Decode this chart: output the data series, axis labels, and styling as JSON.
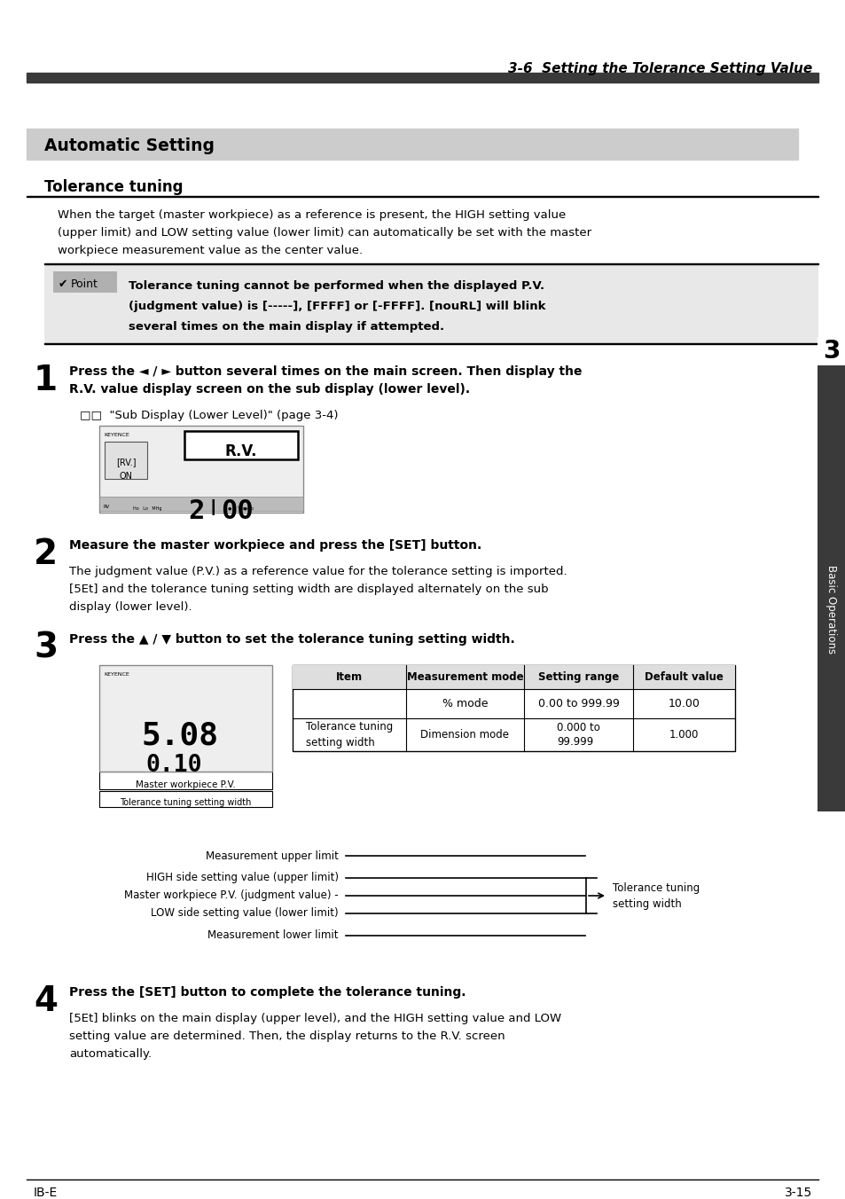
{
  "page_title": "3-6  Setting the Tolerance Setting Value",
  "section_header": "Automatic Setting",
  "subsection_header": "Tolerance tuning",
  "intro_text_lines": [
    "When the target (master workpiece) as a reference is present, the HIGH setting value",
    "(upper limit) and LOW setting value (lower limit) can automatically be set with the master",
    "workpiece measurement value as the center value."
  ],
  "point_text_lines": [
    "Tolerance tuning cannot be performed when the displayed P.V.",
    "(judgment value) is [-----], [FFFF] or [-FFFF]. [nouRL] will blink",
    "several times on the main display if attempted."
  ],
  "step1_lines": [
    "Press the ◄ / ► button several times on the main screen. Then display the",
    "R.V. value display screen on the sub display (lower level)."
  ],
  "step1_ref": "□□  \"Sub Display (Lower Level)\" (page 3-4)",
  "step2_title": "Measure the master workpiece and press the [SET] button.",
  "step2_text_lines": [
    "The judgment value (P.V.) as a reference value for the tolerance setting is imported.",
    "[5Et] and the tolerance tuning setting width are displayed alternately on the sub",
    "display (lower level)."
  ],
  "step3_title": "Press the ▲ / ▼ button to set the tolerance tuning setting width.",
  "table_headers": [
    "Item",
    "Measurement mode",
    "Setting range",
    "Default value"
  ],
  "table_row1_cells": [
    "",
    "% mode",
    "0.00 to 999.99",
    "10.00"
  ],
  "table_row2_cells": [
    "Tolerance tuning\nsetting width",
    "Dimension mode",
    "0.000 to\n99.999",
    "1.000"
  ],
  "diagram_labels": [
    "Measurement upper limit",
    "HIGH side setting value (upper limit)",
    "Master workpiece P.V. (judgment value) -",
    "LOW side setting value (lower limit)",
    "Measurement lower limit"
  ],
  "diagram_right_label": "Tolerance tuning\nsetting width",
  "step4_title": "Press the [SET] button to complete the tolerance tuning.",
  "step4_text_lines": [
    "[5Et] blinks on the main display (upper level), and the HIGH setting value and LOW",
    "setting value are determined. Then, the display returns to the R.V. screen",
    "automatically."
  ],
  "footer_left": "IB-E",
  "footer_right": "3-15",
  "sidebar_text": "Basic Operations",
  "bg_color": "#ffffff",
  "dark_bar_color": "#3a3a3a",
  "section_bg_color": "#cccccc",
  "point_bg_color": "#e8e8e8",
  "table_header_bg": "#dedede",
  "sidebar_bg": "#3a3a3a"
}
